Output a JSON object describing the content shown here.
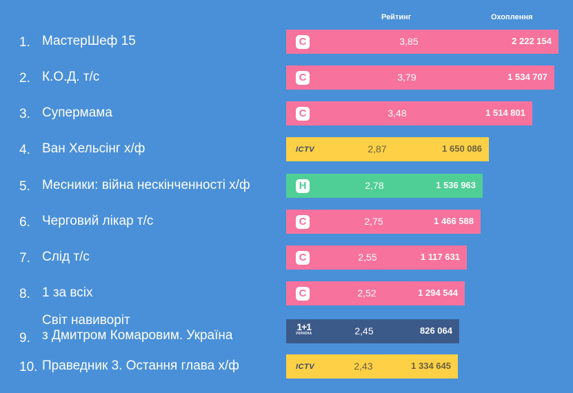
{
  "chart_data": {
    "type": "bar",
    "columns": {
      "rating": "Рейтинг",
      "reach": "Охоплення"
    },
    "channel_colors": {
      "stb": "#f7739e",
      "ictv": "#fdd046",
      "novy": "#4fcf95",
      "1plus1": "#3b5a8a"
    },
    "logos": {
      "stb": "С",
      "ictv": "ICTV",
      "novy": "Н",
      "1plus1": "1+1",
      "1plus1_sub": "УКРАЇНА"
    },
    "rows": [
      {
        "rank": "1.",
        "title": [
          "МастерШеф 15"
        ],
        "channel": "stb",
        "rating": "3,85",
        "reach": "2 222 154",
        "reach_value": 2222154
      },
      {
        "rank": "2.",
        "title": [
          "К.О.Д. т/с"
        ],
        "channel": "stb",
        "rating": "3,79",
        "reach": "1 534 707",
        "reach_value": 1534707
      },
      {
        "rank": "3.",
        "title": [
          "Супермама"
        ],
        "channel": "stb",
        "rating": "3,48",
        "reach": "1 514 801",
        "reach_value": 1514801
      },
      {
        "rank": "4.",
        "title": [
          "Ван Хельсінг х/ф"
        ],
        "channel": "ictv",
        "rating": "2,87",
        "reach": "1 650 086",
        "reach_value": 1650086
      },
      {
        "rank": "5.",
        "title": [
          "Месники: війна нескінченності х/ф"
        ],
        "channel": "novy",
        "rating": "2,78",
        "reach": "1 536 963",
        "reach_value": 1536963
      },
      {
        "rank": "6.",
        "title": [
          "Черговий лікар т/с"
        ],
        "channel": "stb",
        "rating": "2,75",
        "reach": "1 466 588",
        "reach_value": 1466588
      },
      {
        "rank": "7.",
        "title": [
          "Слід т/с"
        ],
        "channel": "stb",
        "rating": "2,55",
        "reach": "1 117 631",
        "reach_value": 1117631
      },
      {
        "rank": "8.",
        "title": [
          "1 за всіх"
        ],
        "channel": "stb",
        "rating": "2,52",
        "reach": "1 294 544",
        "reach_value": 1294544
      },
      {
        "rank": "9.",
        "title": [
          "Світ навиворіт",
          "з Дмитром Комаровим. Україна"
        ],
        "channel": "1plus1",
        "rating": "2,45",
        "reach": "826 064",
        "reach_value": 826064
      },
      {
        "rank": "10.",
        "title": [
          "Праведник 3. Остання глава х/ф"
        ],
        "channel": "ictv",
        "rating": "2,43",
        "reach": "1 334 645",
        "reach_value": 1334645
      }
    ]
  }
}
